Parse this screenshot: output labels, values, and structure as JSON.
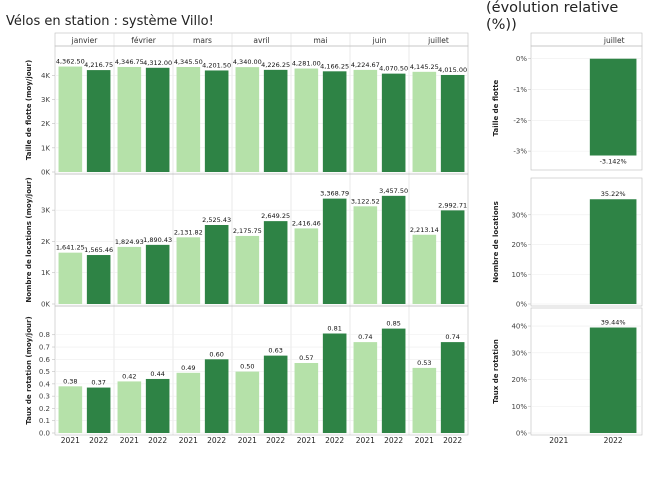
{
  "title": "Vélos en station : système Villo!",
  "right_title_lines": [
    "(évolution relative",
    "(%))"
  ],
  "colors": {
    "y2021": "#b5e1a9",
    "y2022": "#2e8345"
  },
  "chart_data": [
    {
      "type": "bar",
      "title": "Vélos en station : système Villo!",
      "months": [
        "janvier",
        "février",
        "mars",
        "avril",
        "mai",
        "juin",
        "juillet"
      ],
      "years": [
        "2021",
        "2022"
      ],
      "rows": [
        {
          "ylabel": "Taille de flotte (moy/jour)",
          "ylim": [
            0,
            4800
          ],
          "ticks": [
            {
              "v": 0,
              "label": "0K"
            },
            {
              "v": 1000,
              "label": "1K"
            },
            {
              "v": 2000,
              "label": "2K"
            },
            {
              "v": 3000,
              "label": "3K"
            },
            {
              "v": 4000,
              "label": "4K"
            }
          ],
          "values": [
            [
              4362.5,
              4216.75
            ],
            [
              4346.75,
              4312.0
            ],
            [
              4345.5,
              4201.5
            ],
            [
              4340.0,
              4226.25
            ],
            [
              4281.0,
              4166.25
            ],
            [
              4224.67,
              4070.5
            ],
            [
              4145.25,
              4015.0
            ]
          ],
          "labels": [
            [
              "4,362.50",
              "4,216.75"
            ],
            [
              "4,346.75",
              "4,312.00"
            ],
            [
              "4,345.50",
              "4,201.50"
            ],
            [
              "4,340.00",
              "4,226.25"
            ],
            [
              "4,281.00",
              "4,166.25"
            ],
            [
              "4,224.67",
              "4,070.50"
            ],
            [
              "4,145.25",
              "4,015.00"
            ]
          ]
        },
        {
          "ylabel": "Nombre de locations (moy/jour)",
          "ylim": [
            0,
            3900
          ],
          "ticks": [
            {
              "v": 0,
              "label": "0K"
            },
            {
              "v": 1000,
              "label": "1K"
            },
            {
              "v": 2000,
              "label": "2K"
            },
            {
              "v": 3000,
              "label": "3K"
            }
          ],
          "values": [
            [
              1641.25,
              1565.46
            ],
            [
              1824.93,
              1890.43
            ],
            [
              2131.82,
              2525.43
            ],
            [
              2175.75,
              2649.25
            ],
            [
              2416.46,
              3368.79
            ],
            [
              3122.52,
              3457.5
            ],
            [
              2213.14,
              2992.71
            ]
          ],
          "labels": [
            [
              "1,641.25",
              "1,565.46"
            ],
            [
              "1,824.93",
              "1,890.43"
            ],
            [
              "2,131.82",
              "2,525.43"
            ],
            [
              "2,175.75",
              "2,649.25"
            ],
            [
              "2,416.46",
              "3,368.79"
            ],
            [
              "3,122.52",
              "3,457.50"
            ],
            [
              "2,213.14",
              "2,992.71"
            ]
          ]
        },
        {
          "ylabel": "Taux de rotation (moy/jour)",
          "ylim": [
            0,
            0.92
          ],
          "ticks": [
            {
              "v": 0,
              "label": "0.0"
            },
            {
              "v": 0.1,
              "label": "0.1"
            },
            {
              "v": 0.2,
              "label": "0.2"
            },
            {
              "v": 0.3,
              "label": "0.3"
            },
            {
              "v": 0.4,
              "label": "0.4"
            },
            {
              "v": 0.5,
              "label": "0.5"
            },
            {
              "v": 0.6,
              "label": "0.6"
            },
            {
              "v": 0.7,
              "label": "0.7"
            },
            {
              "v": 0.8,
              "label": "0.8"
            }
          ],
          "values": [
            [
              0.38,
              0.37
            ],
            [
              0.42,
              0.44
            ],
            [
              0.49,
              0.6
            ],
            [
              0.5,
              0.63
            ],
            [
              0.57,
              0.81
            ],
            [
              0.74,
              0.85
            ],
            [
              0.53,
              0.74
            ]
          ],
          "labels": [
            [
              "0.38",
              "0.37"
            ],
            [
              "0.42",
              "0.44"
            ],
            [
              "0.49",
              "0.60"
            ],
            [
              "0.50",
              "0.63"
            ],
            [
              "0.57",
              "0.81"
            ],
            [
              "0.74",
              "0.85"
            ],
            [
              "0.53",
              "0.74"
            ]
          ]
        }
      ]
    },
    {
      "type": "bar",
      "title": "(évolution relative (%))",
      "month": "juillet",
      "years": [
        "2021",
        "2022"
      ],
      "rows": [
        {
          "ylabel": "Taille de flotte",
          "ylim": [
            -3.45,
            0.25
          ],
          "ticks": [
            {
              "v": 0,
              "label": "0%"
            },
            {
              "v": -1,
              "label": "-1%"
            },
            {
              "v": -2,
              "label": "-2%"
            },
            {
              "v": -3,
              "label": "-3%"
            }
          ],
          "value_2022": -3.142,
          "label": "-3.142%"
        },
        {
          "ylabel": "Nombre de locations",
          "ylim": [
            0,
            39
          ],
          "ticks": [
            {
              "v": 0,
              "label": "0%"
            },
            {
              "v": 10,
              "label": "10%"
            },
            {
              "v": 20,
              "label": "20%"
            },
            {
              "v": 30,
              "label": "30%"
            }
          ],
          "value_2022": 35.22,
          "label": "35.22%"
        },
        {
          "ylabel": "Taux de rotation",
          "ylim": [
            0,
            43
          ],
          "ticks": [
            {
              "v": 0,
              "label": "0%"
            },
            {
              "v": 10,
              "label": "10%"
            },
            {
              "v": 20,
              "label": "20%"
            },
            {
              "v": 30,
              "label": "30%"
            },
            {
              "v": 40,
              "label": "40%"
            }
          ],
          "value_2022": 39.44,
          "label": "39.44%"
        }
      ]
    }
  ]
}
